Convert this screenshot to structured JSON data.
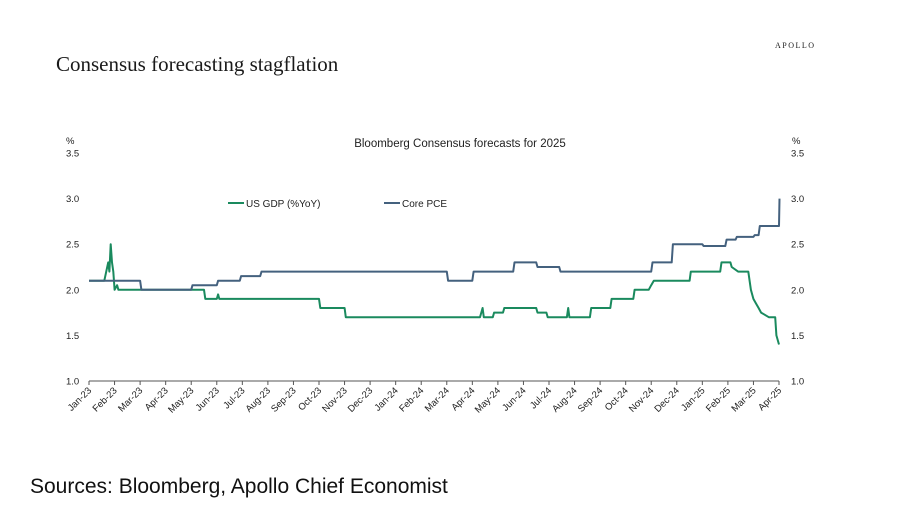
{
  "header": {
    "title": "Consensus forecasting stagflation",
    "brand": "APOLLO"
  },
  "footer": {
    "sources": "Sources: Bloomberg, Apollo Chief Economist"
  },
  "colors": {
    "gdp": "#1a8a5e",
    "pce": "#44617e",
    "axis": "#555555",
    "text": "#222222"
  },
  "chart_data": {
    "type": "line",
    "title": "Bloomberg Consensus forecasts for 2025",
    "y_unit_left": "%",
    "y_unit_right": "%",
    "ylim": [
      1.0,
      3.5
    ],
    "y_ticks": [
      "1.0",
      "1.5",
      "2.0",
      "2.5",
      "3.0",
      "3.5"
    ],
    "x_ticks": [
      "Jan-23",
      "Feb-23",
      "Mar-23",
      "Apr-23",
      "May-23",
      "Jun-23",
      "Jul-23",
      "Aug-23",
      "Sep-23",
      "Oct-23",
      "Nov-23",
      "Dec-23",
      "Jan-24",
      "Feb-24",
      "Mar-24",
      "Apr-24",
      "May-24",
      "Jun-24",
      "Jul-24",
      "Aug-24",
      "Sep-24",
      "Oct-24",
      "Nov-24",
      "Dec-24",
      "Jan-25",
      "Feb-25",
      "Mar-25",
      "Apr-25"
    ],
    "grid": false,
    "legend_position": "top-left",
    "series": [
      {
        "name": "US GDP (%YoY)",
        "color": "#1a8a5e",
        "points": [
          [
            0.0,
            2.1
          ],
          [
            0.6,
            2.1
          ],
          [
            0.75,
            2.3
          ],
          [
            0.8,
            2.2
          ],
          [
            0.85,
            2.5
          ],
          [
            0.9,
            2.3
          ],
          [
            0.95,
            2.2
          ],
          [
            1.0,
            2.0
          ],
          [
            1.1,
            2.05
          ],
          [
            1.15,
            2.0
          ],
          [
            2.0,
            2.0
          ],
          [
            4.5,
            2.0
          ],
          [
            4.55,
            1.9
          ],
          [
            5.0,
            1.9
          ],
          [
            5.05,
            1.95
          ],
          [
            5.1,
            1.9
          ],
          [
            9.0,
            1.9
          ],
          [
            9.05,
            1.8
          ],
          [
            10.0,
            1.8
          ],
          [
            10.05,
            1.7
          ],
          [
            15.3,
            1.7
          ],
          [
            15.35,
            1.75
          ],
          [
            15.4,
            1.8
          ],
          [
            15.45,
            1.7
          ],
          [
            15.8,
            1.7
          ],
          [
            15.85,
            1.75
          ],
          [
            16.2,
            1.75
          ],
          [
            16.25,
            1.8
          ],
          [
            17.5,
            1.8
          ],
          [
            17.55,
            1.75
          ],
          [
            17.9,
            1.75
          ],
          [
            17.95,
            1.7
          ],
          [
            18.7,
            1.7
          ],
          [
            18.75,
            1.8
          ],
          [
            18.8,
            1.7
          ],
          [
            19.6,
            1.7
          ],
          [
            19.65,
            1.8
          ],
          [
            20.4,
            1.8
          ],
          [
            20.45,
            1.9
          ],
          [
            21.3,
            1.9
          ],
          [
            21.35,
            2.0
          ],
          [
            21.9,
            2.0
          ],
          [
            22.0,
            2.05
          ],
          [
            22.1,
            2.1
          ],
          [
            23.5,
            2.1
          ],
          [
            23.55,
            2.2
          ],
          [
            24.7,
            2.2
          ],
          [
            24.75,
            2.3
          ],
          [
            25.1,
            2.3
          ],
          [
            25.15,
            2.25
          ],
          [
            25.4,
            2.2
          ],
          [
            25.8,
            2.2
          ],
          [
            25.9,
            2.0
          ],
          [
            26.0,
            1.9
          ],
          [
            26.1,
            1.85
          ],
          [
            26.2,
            1.8
          ],
          [
            26.3,
            1.75
          ],
          [
            26.6,
            1.7
          ],
          [
            26.85,
            1.7
          ],
          [
            26.9,
            1.5
          ],
          [
            27.0,
            1.4
          ]
        ]
      },
      {
        "name": "Core PCE",
        "color": "#44617e",
        "points": [
          [
            0.0,
            2.1
          ],
          [
            1.0,
            2.1
          ],
          [
            2.0,
            2.1
          ],
          [
            2.05,
            2.0
          ],
          [
            4.0,
            2.0
          ],
          [
            4.05,
            2.05
          ],
          [
            5.0,
            2.05
          ],
          [
            5.05,
            2.1
          ],
          [
            5.9,
            2.1
          ],
          [
            5.95,
            2.15
          ],
          [
            6.7,
            2.15
          ],
          [
            6.75,
            2.2
          ],
          [
            14.0,
            2.2
          ],
          [
            14.05,
            2.1
          ],
          [
            15.0,
            2.1
          ],
          [
            15.05,
            2.2
          ],
          [
            16.6,
            2.2
          ],
          [
            16.65,
            2.3
          ],
          [
            17.5,
            2.3
          ],
          [
            17.55,
            2.25
          ],
          [
            18.4,
            2.25
          ],
          [
            18.45,
            2.2
          ],
          [
            22.0,
            2.2
          ],
          [
            22.05,
            2.3
          ],
          [
            22.8,
            2.3
          ],
          [
            22.85,
            2.5
          ],
          [
            24.0,
            2.5
          ],
          [
            24.05,
            2.48
          ],
          [
            24.9,
            2.48
          ],
          [
            24.95,
            2.55
          ],
          [
            25.3,
            2.55
          ],
          [
            25.35,
            2.58
          ],
          [
            26.0,
            2.58
          ],
          [
            26.05,
            2.6
          ],
          [
            26.2,
            2.6
          ],
          [
            26.25,
            2.7
          ],
          [
            27.0,
            2.7
          ],
          [
            27.02,
            3.0
          ]
        ]
      }
    ]
  }
}
